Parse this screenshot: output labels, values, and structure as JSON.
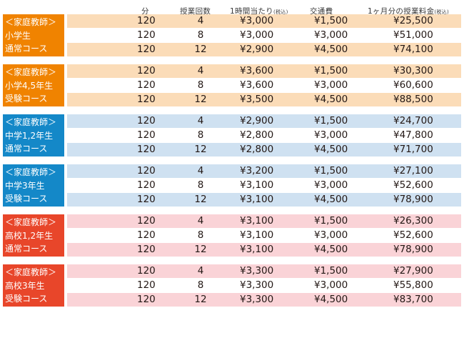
{
  "headers": {
    "minutes": "分",
    "lessons": "授業回数",
    "per_hour": "1時間当たり",
    "per_hour_note": "(税込)",
    "transport": "交通費",
    "monthly": "1ヶ月分の授業料金",
    "monthly_note": "(税込)"
  },
  "colors": {
    "orange_label": "#f08300",
    "orange_band": "#fbdcb8",
    "blue_label": "#1488c8",
    "blue_band": "#cfe1f1",
    "red_label": "#e8462a",
    "red_band": "#fad3d7"
  },
  "groups": [
    {
      "theme": "orange",
      "label": [
        "＜家庭教師＞",
        "小学生",
        "通常コース"
      ],
      "rows": [
        {
          "minutes": "120",
          "lessons": "4",
          "per_hour": "¥3,000",
          "transport": "¥1,500",
          "monthly": "¥25,500"
        },
        {
          "minutes": "120",
          "lessons": "8",
          "per_hour": "¥3,000",
          "transport": "¥3,000",
          "monthly": "¥51,000"
        },
        {
          "minutes": "120",
          "lessons": "12",
          "per_hour": "¥2,900",
          "transport": "¥4,500",
          "monthly": "¥74,100"
        }
      ]
    },
    {
      "theme": "orange",
      "label": [
        "＜家庭教師＞",
        "小学4,5年生",
        "受験コース"
      ],
      "rows": [
        {
          "minutes": "120",
          "lessons": "4",
          "per_hour": "¥3,600",
          "transport": "¥1,500",
          "monthly": "¥30,300"
        },
        {
          "minutes": "120",
          "lessons": "8",
          "per_hour": "¥3,600",
          "transport": "¥3,000",
          "monthly": "¥60,600"
        },
        {
          "minutes": "120",
          "lessons": "12",
          "per_hour": "¥3,500",
          "transport": "¥4,500",
          "monthly": "¥88,500"
        }
      ]
    },
    {
      "theme": "blue",
      "label": [
        "＜家庭教師＞",
        "中学1,2年生",
        "通常コース"
      ],
      "rows": [
        {
          "minutes": "120",
          "lessons": "4",
          "per_hour": "¥2,900",
          "transport": "¥1,500",
          "monthly": "¥24,700"
        },
        {
          "minutes": "120",
          "lessons": "8",
          "per_hour": "¥2,800",
          "transport": "¥3,000",
          "monthly": "¥47,800"
        },
        {
          "minutes": "120",
          "lessons": "12",
          "per_hour": "¥2,800",
          "transport": "¥4,500",
          "monthly": "¥71,700"
        }
      ]
    },
    {
      "theme": "blue",
      "label": [
        "＜家庭教師＞",
        "中学3年生",
        "受験コース"
      ],
      "rows": [
        {
          "minutes": "120",
          "lessons": "4",
          "per_hour": "¥3,200",
          "transport": "¥1,500",
          "monthly": "¥27,100"
        },
        {
          "minutes": "120",
          "lessons": "8",
          "per_hour": "¥3,100",
          "transport": "¥3,000",
          "monthly": "¥52,600"
        },
        {
          "minutes": "120",
          "lessons": "12",
          "per_hour": "¥3,100",
          "transport": "¥4,500",
          "monthly": "¥78,900"
        }
      ]
    },
    {
      "theme": "red",
      "label": [
        "＜家庭教師＞",
        "高校1,2年生",
        "通常コース"
      ],
      "rows": [
        {
          "minutes": "120",
          "lessons": "4",
          "per_hour": "¥3,100",
          "transport": "¥1,500",
          "monthly": "¥26,300"
        },
        {
          "minutes": "120",
          "lessons": "8",
          "per_hour": "¥3,100",
          "transport": "¥3,000",
          "monthly": "¥52,600"
        },
        {
          "minutes": "120",
          "lessons": "12",
          "per_hour": "¥3,100",
          "transport": "¥4,500",
          "monthly": "¥78,900"
        }
      ]
    },
    {
      "theme": "red",
      "label": [
        "＜家庭教師＞",
        "高校3年生",
        "受験コース"
      ],
      "rows": [
        {
          "minutes": "120",
          "lessons": "4",
          "per_hour": "¥3,300",
          "transport": "¥1,500",
          "monthly": "¥27,900"
        },
        {
          "minutes": "120",
          "lessons": "8",
          "per_hour": "¥3,300",
          "transport": "¥3,000",
          "monthly": "¥55,800"
        },
        {
          "minutes": "120",
          "lessons": "12",
          "per_hour": "¥3,300",
          "transport": "¥4,500",
          "monthly": "¥83,700"
        }
      ]
    }
  ]
}
